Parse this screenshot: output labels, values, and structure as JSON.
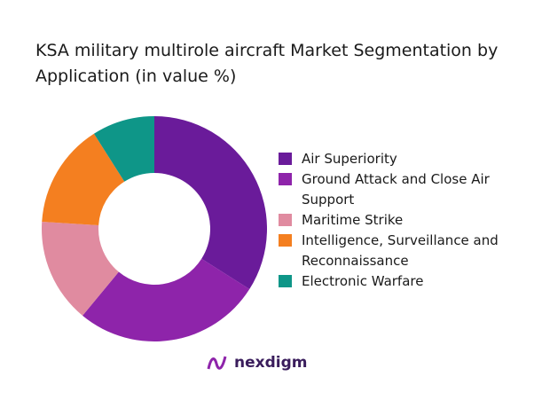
{
  "chart_data": {
    "type": "pie",
    "donut": true,
    "title": "KSA military multirole aircraft Market Segmentation by Application (in value %)",
    "categories": [
      "Air Superiority",
      "Ground Attack and Close Air Support",
      "Maritime Strike",
      "Intelligence, Surveillance and Reconnaissance",
      "Electronic Warfare"
    ],
    "values": [
      34,
      27,
      15,
      15,
      9
    ],
    "colors": [
      "#6A1B9A",
      "#8E24AA",
      "#E08BA0",
      "#F47F20",
      "#0E9688"
    ],
    "legend_position": "right"
  },
  "logo": {
    "text": "nexdigm"
  }
}
